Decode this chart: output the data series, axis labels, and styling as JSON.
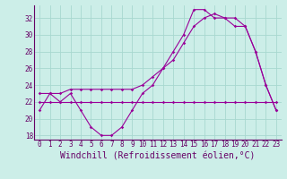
{
  "xlabel": "Windchill (Refroidissement éolien,°C)",
  "bg_color": "#cceee8",
  "grid_color": "#a8d8d0",
  "line_color": "#990099",
  "xlim": [
    -0.5,
    23.5
  ],
  "ylim": [
    17.5,
    33.5
  ],
  "yticks": [
    18,
    20,
    22,
    24,
    26,
    28,
    30,
    32
  ],
  "xticks": [
    0,
    1,
    2,
    3,
    4,
    5,
    6,
    7,
    8,
    9,
    10,
    11,
    12,
    13,
    14,
    15,
    16,
    17,
    18,
    19,
    20,
    21,
    22,
    23
  ],
  "line1": [
    21,
    23,
    22,
    23,
    21,
    19,
    18,
    18,
    19,
    21,
    23,
    24,
    26,
    28,
    30,
    33,
    33,
    32,
    32,
    32,
    31,
    28,
    24,
    21
  ],
  "line2": [
    23,
    23,
    23,
    23.5,
    23.5,
    23.5,
    23.5,
    23.5,
    23.5,
    23.5,
    24,
    25,
    26,
    27,
    29,
    31,
    32,
    32.5,
    32,
    31,
    31,
    28,
    24,
    21
  ],
  "line3": [
    22,
    22,
    22,
    22,
    22,
    22,
    22,
    22,
    22,
    22,
    22,
    22,
    22,
    22,
    22,
    22,
    22,
    22,
    22,
    22,
    22,
    22,
    22,
    22
  ],
  "font_color": "#660066",
  "tick_fontsize": 5.5,
  "label_fontsize": 7
}
